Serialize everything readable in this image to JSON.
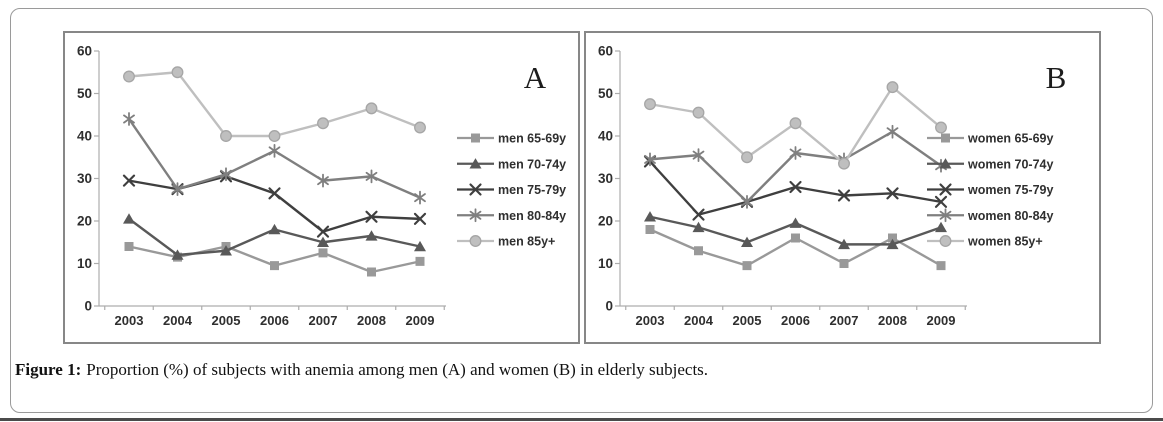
{
  "figure": {
    "caption_label": "Figure 1:",
    "caption_text": "Proportion (%) of subjects with anemia among men (A) and women (B) in elderly subjects."
  },
  "colors": {
    "panel_border": "#878787",
    "card_border": "#9a9a9a",
    "axis_line": "#adadad",
    "tick_text": "#2f2f2f",
    "legend_text": "#2f2f2f",
    "panel_letter": "#1c1c1c",
    "bottom_bar": "#4b4b4b",
    "series_65_69": "#999999",
    "series_70_74": "#595959",
    "series_75_79": "#3f3f3f",
    "series_80_84": "#7f7f7f",
    "series_85plus": "#bfbfbf"
  },
  "chart_data": [
    {
      "type": "line",
      "panel_label": "A",
      "categories": [
        "2003",
        "2004",
        "2005",
        "2006",
        "2007",
        "2008",
        "2009"
      ],
      "ylim": [
        0,
        60
      ],
      "yticks": [
        0,
        10,
        20,
        30,
        40,
        50,
        60
      ],
      "grid": false,
      "legend_position": "right",
      "series": [
        {
          "name": "men 65-69y",
          "marker": "square",
          "color": "#999999",
          "values": [
            14,
            11.5,
            14,
            9.5,
            12.5,
            8,
            10.5
          ]
        },
        {
          "name": "men 70-74y",
          "marker": "triangle",
          "color": "#595959",
          "values": [
            20.5,
            12,
            13,
            18,
            15,
            16.5,
            14
          ]
        },
        {
          "name": "men 75-79y",
          "marker": "x",
          "color": "#3f3f3f",
          "values": [
            29.5,
            27.5,
            30.5,
            26.5,
            17.5,
            21,
            20.5
          ]
        },
        {
          "name": "men 80-84y",
          "marker": "asterisk",
          "color": "#7f7f7f",
          "values": [
            44,
            27.5,
            31,
            36.5,
            29.5,
            30.5,
            25.5
          ]
        },
        {
          "name": "men 85y+",
          "marker": "circle",
          "color": "#bfbfbf",
          "values": [
            54,
            55,
            40,
            40,
            43,
            46.5,
            42
          ]
        }
      ]
    },
    {
      "type": "line",
      "panel_label": "B",
      "categories": [
        "2003",
        "2004",
        "2005",
        "2006",
        "2007",
        "2008",
        "2009"
      ],
      "ylim": [
        0,
        60
      ],
      "yticks": [
        0,
        10,
        20,
        30,
        40,
        50,
        60
      ],
      "grid": false,
      "legend_position": "right",
      "series": [
        {
          "name": "women 65-69y",
          "marker": "square",
          "color": "#999999",
          "values": [
            18,
            13,
            9.5,
            16,
            10,
            16,
            9.5
          ]
        },
        {
          "name": "women 70-74y",
          "marker": "triangle",
          "color": "#595959",
          "values": [
            21,
            18.5,
            15,
            19.5,
            14.5,
            14.5,
            18.5
          ]
        },
        {
          "name": "women 75-79y",
          "marker": "x",
          "color": "#3f3f3f",
          "values": [
            34,
            21.5,
            24.5,
            28,
            26,
            26.5,
            24.5
          ]
        },
        {
          "name": "women 80-84y",
          "marker": "asterisk",
          "color": "#7f7f7f",
          "values": [
            34.5,
            35.5,
            24.5,
            36,
            34.5,
            41,
            33
          ]
        },
        {
          "name": "women 85y+",
          "marker": "circle",
          "color": "#bfbfbf",
          "values": [
            47.5,
            45.5,
            35,
            43,
            33.5,
            51.5,
            42
          ]
        }
      ]
    }
  ]
}
